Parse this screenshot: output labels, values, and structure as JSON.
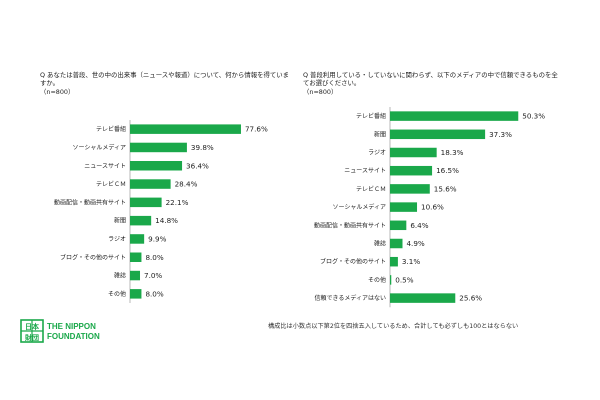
{
  "chart_data": [
    {
      "type": "bar",
      "orientation": "horizontal",
      "title": "Q あなたは普段、世の中の出来事（ニュースや報道）について、何から情報を得ていますか。\n（n=800）",
      "categories": [
        "テレビ番組",
        "ソーシャルメディア",
        "ニュースサイト",
        "テレビＣＭ",
        "動画配信・動画共有サイト",
        "新聞",
        "ラジオ",
        "ブログ・その他のサイト",
        "雑誌",
        "その他"
      ],
      "values": [
        77.6,
        39.8,
        36.4,
        28.4,
        22.1,
        14.8,
        9.9,
        8.0,
        7.0,
        8.0
      ],
      "value_labels": [
        "77.6%",
        "39.8%",
        "36.4%",
        "28.4%",
        "22.1%",
        "14.8%",
        "9.9%",
        "8.0%",
        "7.0%",
        "8.0%"
      ],
      "unit": "%",
      "bar_color": "#1aa84a",
      "grid": false
    },
    {
      "type": "bar",
      "orientation": "horizontal",
      "title": "Q 普段利用している・していないに関わらず、以下のメディアの中で信頼できるものを全てお選びください。\n（n=800）",
      "categories": [
        "テレビ番組",
        "新聞",
        "ラジオ",
        "ニュースサイト",
        "テレビＣＭ",
        "ソーシャルメディア",
        "動画配信・動画共有サイト",
        "雑誌",
        "ブログ・その他のサイト",
        "その他",
        "信頼できるメディアはない"
      ],
      "values": [
        50.3,
        37.3,
        18.3,
        16.5,
        15.6,
        10.6,
        6.4,
        4.9,
        3.1,
        0.5,
        25.6
      ],
      "value_labels": [
        "50.3%",
        "37.3%",
        "18.3%",
        "16.5%",
        "15.6%",
        "10.6%",
        "6.4%",
        "4.9%",
        "3.1%",
        "0.5%",
        "25.6%"
      ],
      "unit": "%",
      "bar_color": "#1aa84a",
      "grid": false
    }
  ],
  "footnote": "構成比は小数点以下第2位を四捨五入しているため、合計しても必ずしも100とはならない",
  "logo": {
    "text_line1": "THE NIPPON",
    "text_line2": "FOUNDATION",
    "kanji_top": "日本",
    "kanji_bottom": "財団",
    "color": "#1aa84a"
  }
}
